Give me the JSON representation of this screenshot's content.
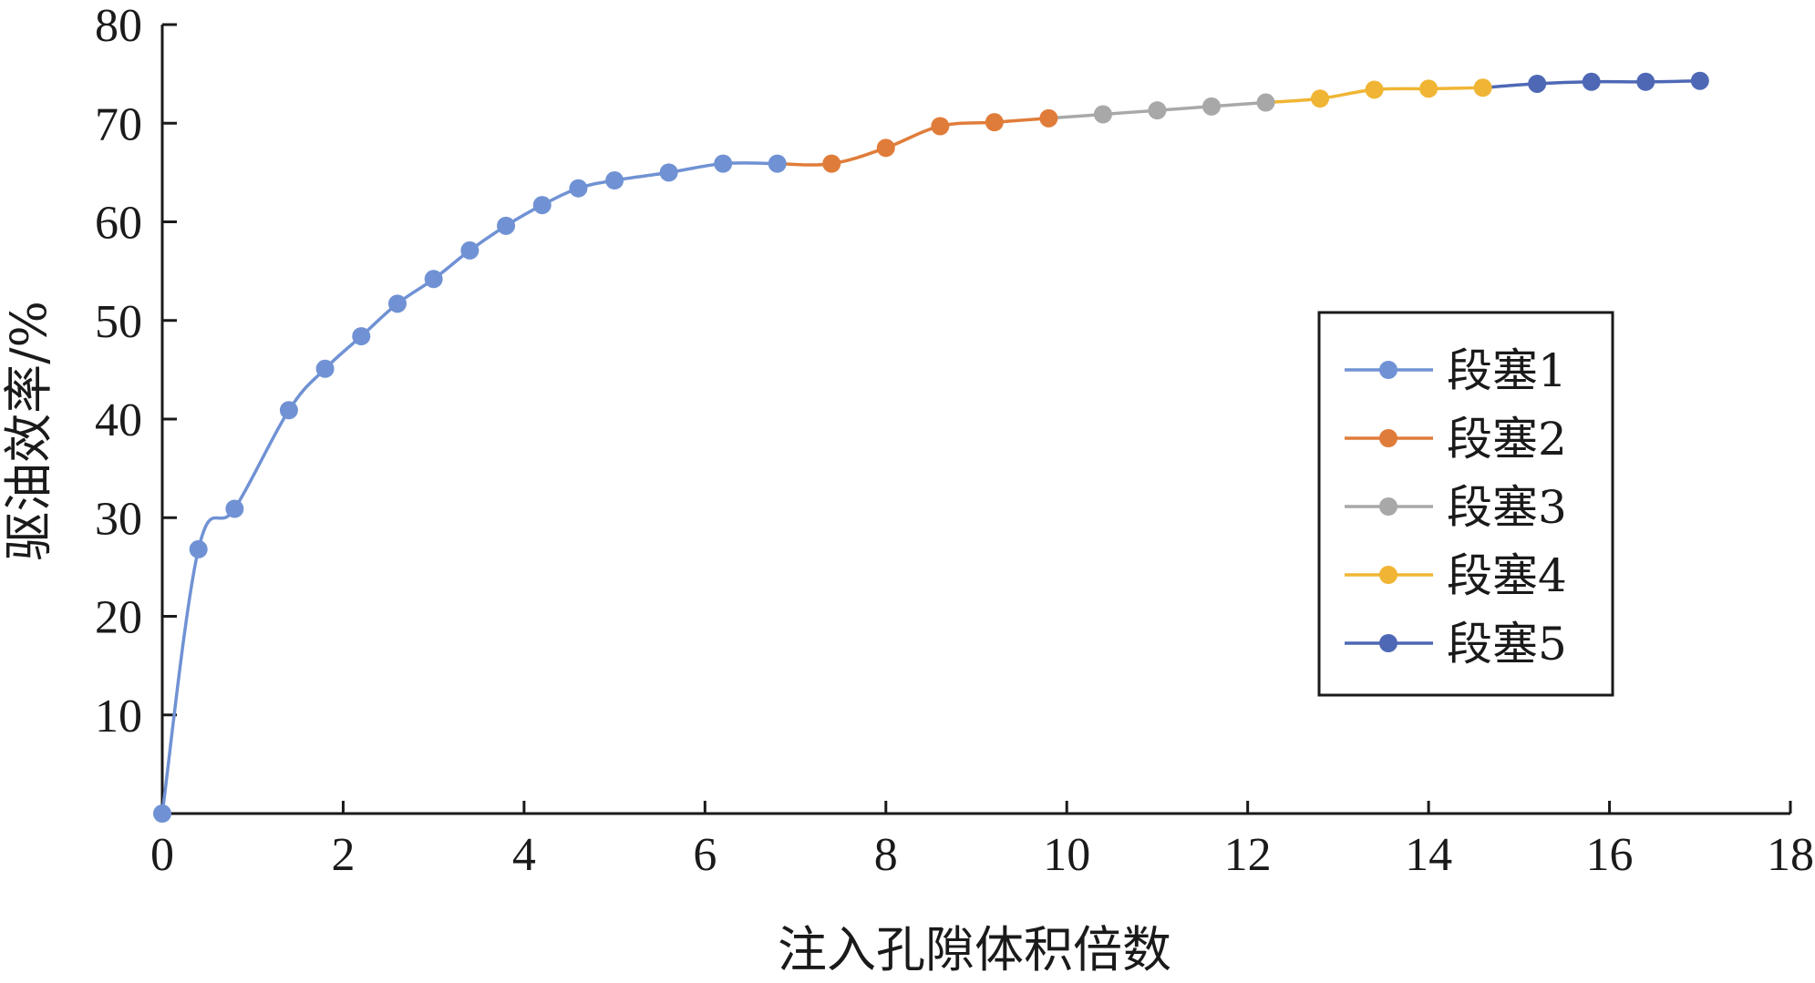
{
  "chart_data": {
    "type": "line",
    "xlabel": "注入孔隙体积倍数",
    "ylabel": "驱油效率/%",
    "xlim": [
      0,
      18
    ],
    "ylim": [
      0,
      80
    ],
    "x_ticks": [
      "0",
      "2",
      "4",
      "6",
      "8",
      "10",
      "12",
      "14",
      "16",
      "18"
    ],
    "y_ticks": [
      "10",
      "20",
      "30",
      "40",
      "50",
      "60",
      "70",
      "80"
    ],
    "legend_position": "right",
    "grid": false,
    "series": [
      {
        "name": "段塞1",
        "color": "#7092d4",
        "points": [
          [
            0,
            0
          ],
          [
            0.4,
            26.8
          ],
          [
            0.8,
            30.9
          ],
          [
            1.4,
            40.9
          ],
          [
            1.8,
            45.1
          ],
          [
            2.2,
            48.4
          ],
          [
            2.6,
            51.7
          ],
          [
            3.0,
            54.2
          ],
          [
            3.4,
            57.1
          ],
          [
            3.8,
            59.6
          ],
          [
            4.2,
            61.7
          ],
          [
            4.6,
            63.4
          ],
          [
            5.0,
            64.2
          ],
          [
            5.6,
            65.0
          ],
          [
            6.2,
            65.9
          ],
          [
            6.8,
            65.9
          ]
        ]
      },
      {
        "name": "段塞2",
        "color": "#e07c3a",
        "points": [
          [
            6.8,
            65.9
          ],
          [
            7.4,
            65.9
          ],
          [
            8.0,
            67.5
          ],
          [
            8.6,
            69.7
          ],
          [
            9.2,
            70.1
          ],
          [
            9.8,
            70.5
          ]
        ]
      },
      {
        "name": "段塞3",
        "color": "#a8a8a8",
        "points": [
          [
            9.8,
            70.5
          ],
          [
            10.4,
            70.9
          ],
          [
            11.0,
            71.3
          ],
          [
            11.6,
            71.7
          ],
          [
            12.2,
            72.1
          ]
        ]
      },
      {
        "name": "段塞4",
        "color": "#f0b534",
        "points": [
          [
            12.2,
            72.1
          ],
          [
            12.8,
            72.5
          ],
          [
            13.4,
            73.4
          ],
          [
            14.0,
            73.5
          ],
          [
            14.6,
            73.6
          ]
        ]
      },
      {
        "name": "段塞5",
        "color": "#4e68b5",
        "points": [
          [
            14.6,
            73.6
          ],
          [
            15.2,
            74.0
          ],
          [
            15.8,
            74.2
          ],
          [
            16.4,
            74.2
          ],
          [
            17.0,
            74.3
          ]
        ]
      }
    ]
  }
}
